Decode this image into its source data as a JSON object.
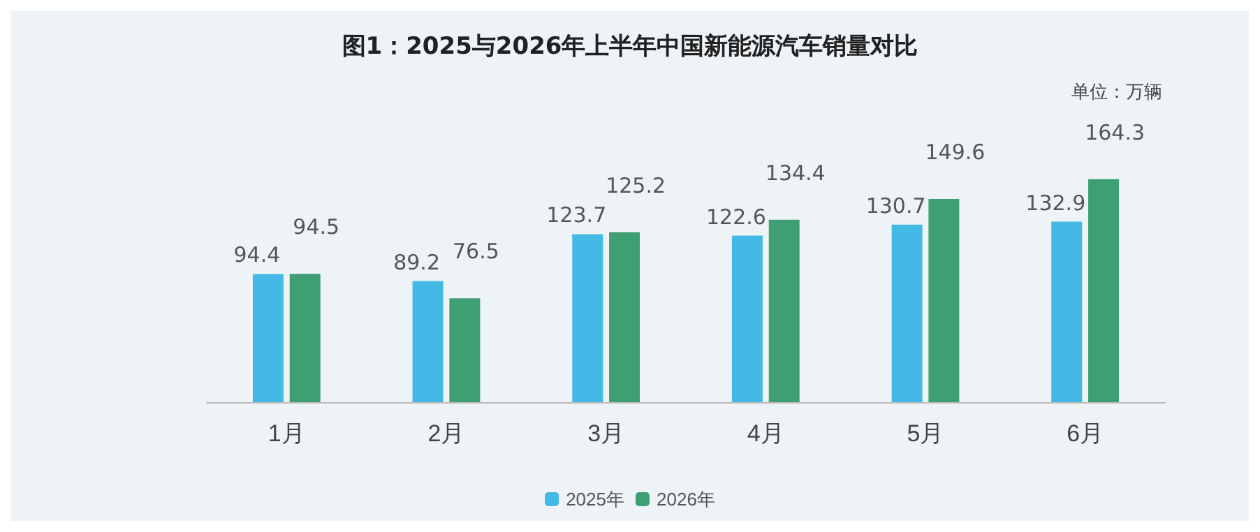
{
  "chart_data": {
    "type": "bar",
    "title": "图1：2025与2026年上半年中国新能源汽车销量对比",
    "annotations": [
      "单位：万辆"
    ],
    "categories": [
      "1月",
      "2月",
      "3月",
      "4月",
      "5月",
      "6月"
    ],
    "series": [
      {
        "name": "2025年",
        "color": "#45b9e5",
        "values": [
          94.4,
          89.2,
          123.7,
          122.6,
          130.7,
          132.9
        ]
      },
      {
        "name": "2026年",
        "color": "#3d9f73",
        "values": [
          94.5,
          76.5,
          125.2,
          134.4,
          149.6,
          164.3
        ]
      }
    ],
    "data_labels": true,
    "legend": "bottom"
  }
}
